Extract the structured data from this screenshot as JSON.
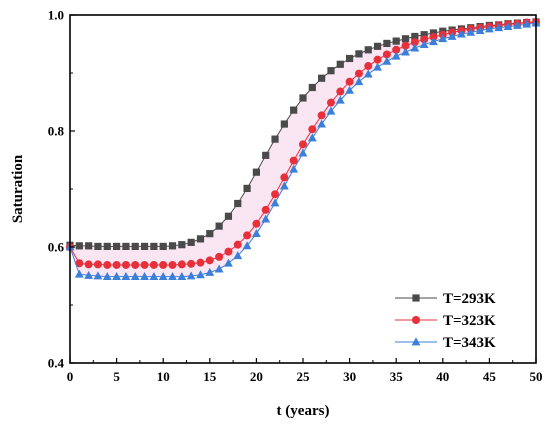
{
  "chart_data": {
    "type": "line",
    "title": "",
    "xlabel": "t (years)",
    "ylabel": "Saturation",
    "xlim": [
      0,
      50
    ],
    "ylim": [
      0.4,
      1.0
    ],
    "x_ticks": [
      0,
      5,
      10,
      15,
      20,
      25,
      30,
      35,
      40,
      45,
      50
    ],
    "y_ticks": [
      0.4,
      0.6,
      0.8,
      1.0
    ],
    "y_tick_labels": [
      "0.4",
      "0.6",
      "0.8",
      "1.0"
    ],
    "grid": false,
    "legend_position": "bottom-right",
    "x": [
      0,
      1,
      2,
      3,
      4,
      5,
      6,
      7,
      8,
      9,
      10,
      11,
      12,
      13,
      14,
      15,
      16,
      17,
      18,
      19,
      20,
      21,
      22,
      23,
      24,
      25,
      26,
      27,
      28,
      29,
      30,
      31,
      32,
      33,
      34,
      35,
      36,
      37,
      38,
      39,
      40,
      41,
      42,
      43,
      44,
      45,
      46,
      47,
      48,
      49,
      50
    ],
    "series": [
      {
        "name": "T=293K",
        "color": "#4a4a4a",
        "marker": "square",
        "values": [
          0.603,
          0.602,
          0.602,
          0.601,
          0.601,
          0.601,
          0.601,
          0.601,
          0.601,
          0.601,
          0.601,
          0.602,
          0.604,
          0.608,
          0.614,
          0.623,
          0.636,
          0.653,
          0.675,
          0.701,
          0.729,
          0.758,
          0.786,
          0.812,
          0.836,
          0.857,
          0.875,
          0.891,
          0.904,
          0.915,
          0.925,
          0.933,
          0.94,
          0.946,
          0.951,
          0.955,
          0.959,
          0.963,
          0.966,
          0.969,
          0.972,
          0.974,
          0.976,
          0.978,
          0.98,
          0.982,
          0.983,
          0.985,
          0.986,
          0.987,
          0.988
        ]
      },
      {
        "name": "T=323K",
        "color": "#e8303a",
        "marker": "circle",
        "values": [
          0.6,
          0.572,
          0.57,
          0.57,
          0.569,
          0.569,
          0.569,
          0.569,
          0.569,
          0.569,
          0.569,
          0.569,
          0.57,
          0.571,
          0.573,
          0.577,
          0.583,
          0.592,
          0.604,
          0.62,
          0.64,
          0.664,
          0.691,
          0.72,
          0.749,
          0.777,
          0.803,
          0.827,
          0.849,
          0.868,
          0.885,
          0.899,
          0.912,
          0.923,
          0.932,
          0.94,
          0.947,
          0.953,
          0.958,
          0.962,
          0.966,
          0.97,
          0.973,
          0.976,
          0.978,
          0.98,
          0.982,
          0.984,
          0.985,
          0.987,
          0.988
        ]
      },
      {
        "name": "T=343K",
        "color": "#3b7fd9",
        "marker": "triangle",
        "values": [
          0.6,
          0.553,
          0.551,
          0.55,
          0.549,
          0.549,
          0.549,
          0.549,
          0.549,
          0.549,
          0.549,
          0.549,
          0.549,
          0.55,
          0.552,
          0.556,
          0.562,
          0.572,
          0.585,
          0.602,
          0.623,
          0.648,
          0.676,
          0.705,
          0.734,
          0.762,
          0.788,
          0.812,
          0.834,
          0.853,
          0.87,
          0.885,
          0.898,
          0.91,
          0.92,
          0.929,
          0.936,
          0.943,
          0.949,
          0.954,
          0.959,
          0.963,
          0.967,
          0.97,
          0.973,
          0.976,
          0.978,
          0.98,
          0.982,
          0.984,
          0.986
        ]
      }
    ]
  }
}
